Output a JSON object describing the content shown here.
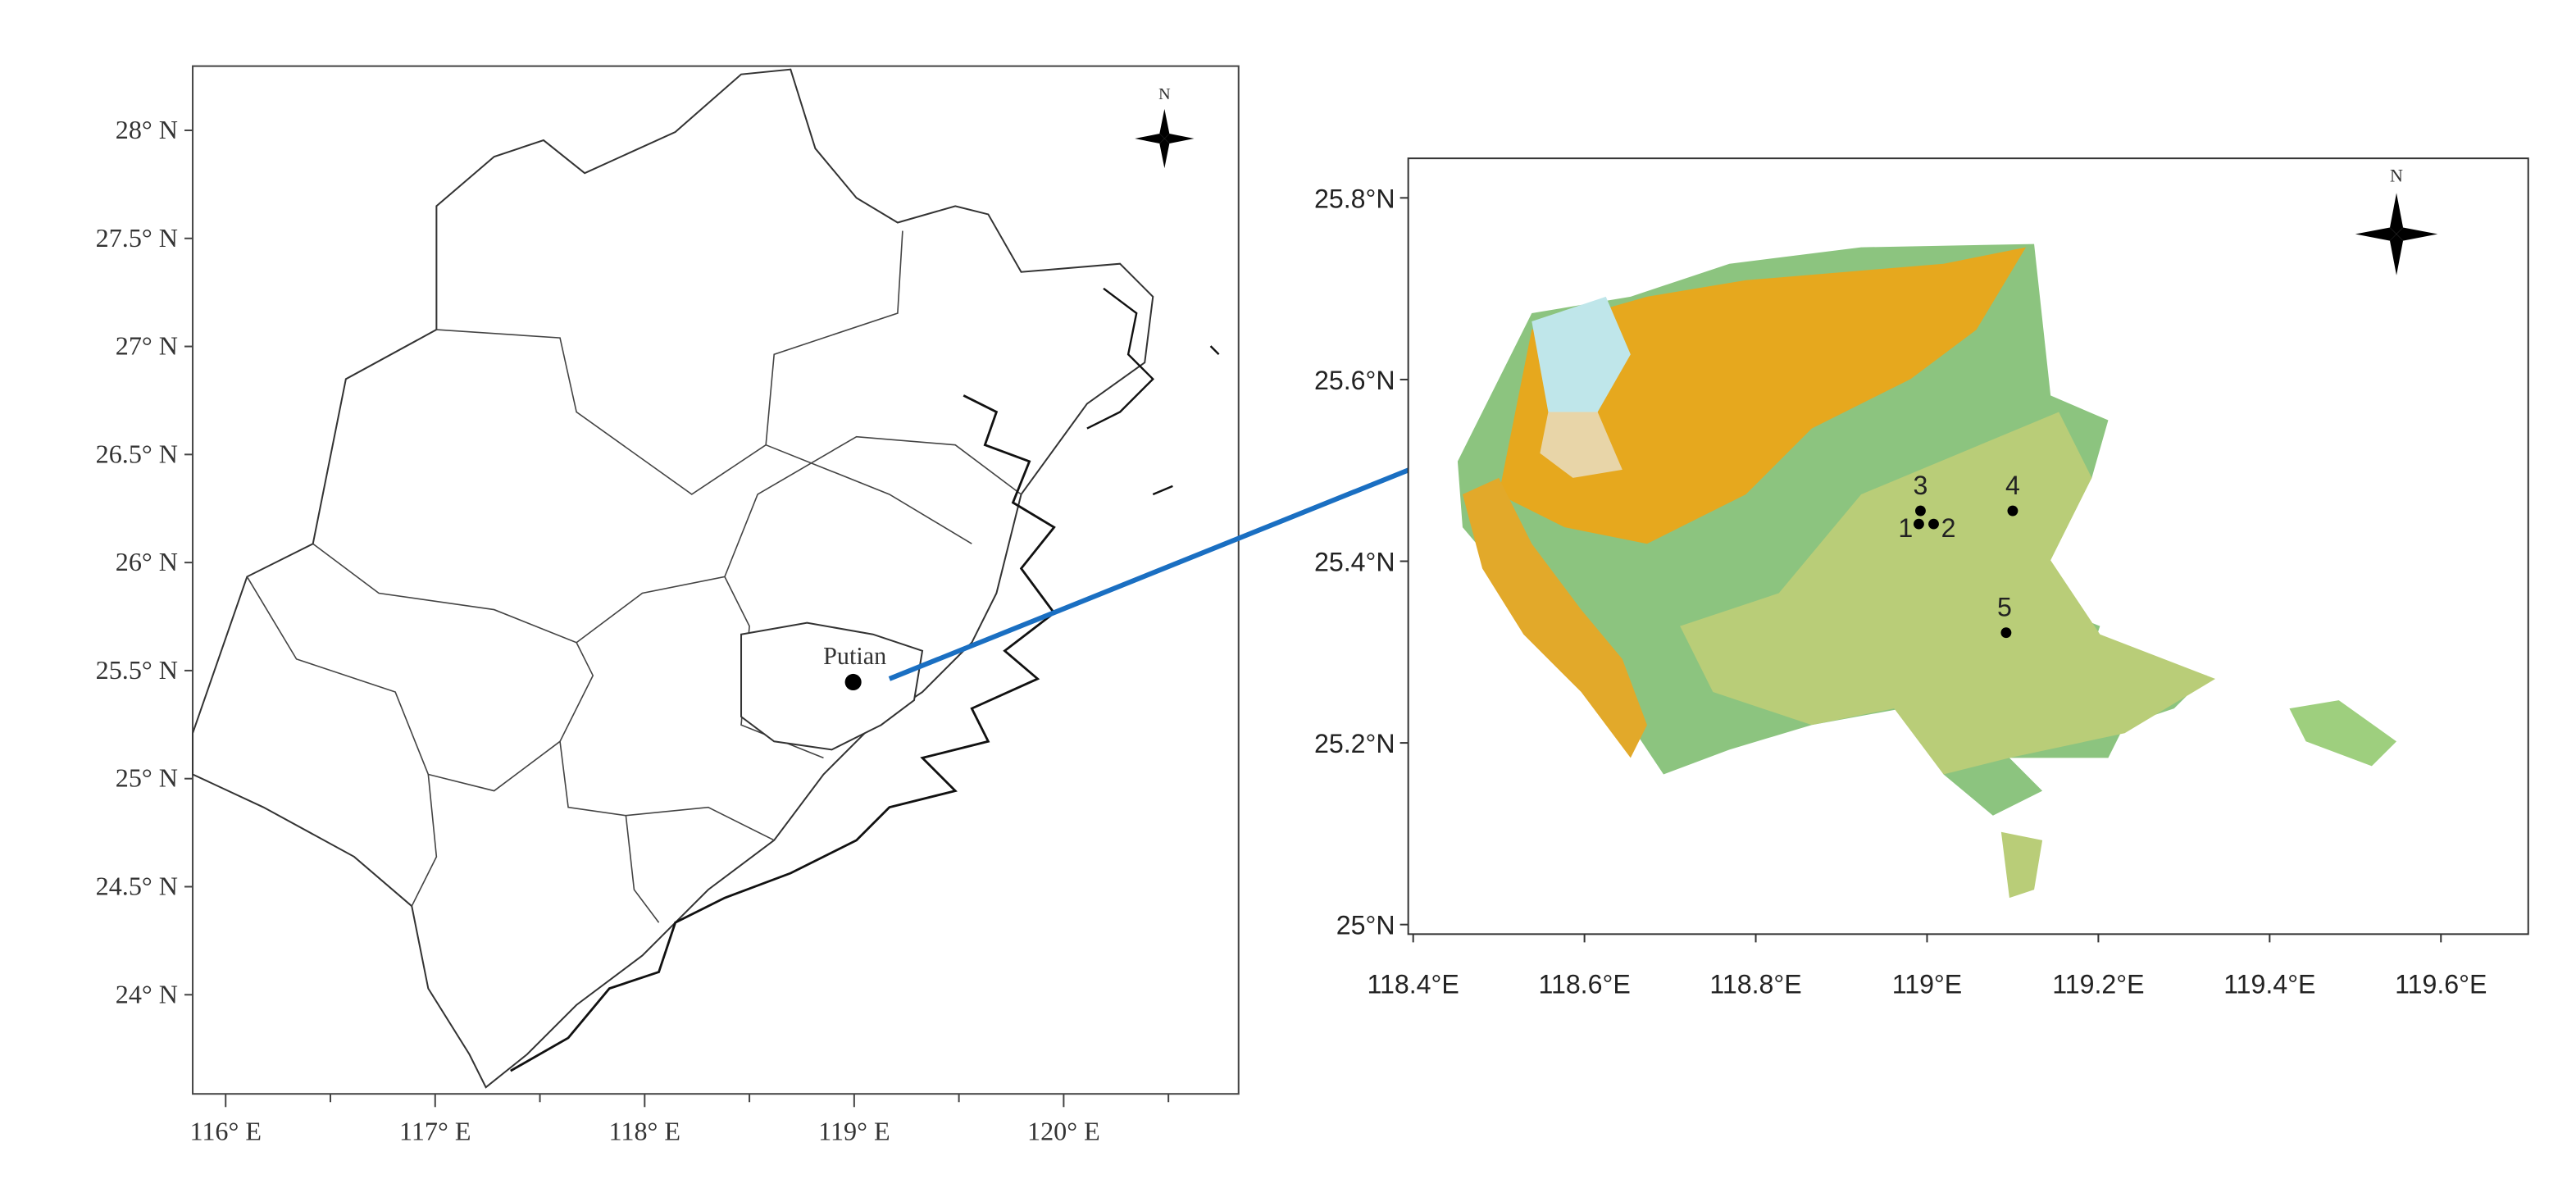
{
  "left_map": {
    "yticks": [
      "28° N",
      "27.5° N",
      "27° N",
      "26.5° N",
      "26° N",
      "25.5° N",
      "25° N",
      "24.5° N",
      "24° N"
    ],
    "xticks": [
      "116° E",
      "117° E",
      "118° E",
      "119° E",
      "120° E"
    ],
    "city": "Putian",
    "north": "N"
  },
  "right_map": {
    "yticks": [
      "25.8°N",
      "25.6°N",
      "25.4°N",
      "25.2°N",
      "25°N"
    ],
    "xticks": [
      "118.4°E",
      "118.6°E",
      "118.8°E",
      "119°E",
      "119.2°E",
      "119.4°E",
      "119.6°E"
    ],
    "north": "N",
    "sites": [
      "1",
      "2",
      "3",
      "4",
      "5"
    ]
  }
}
